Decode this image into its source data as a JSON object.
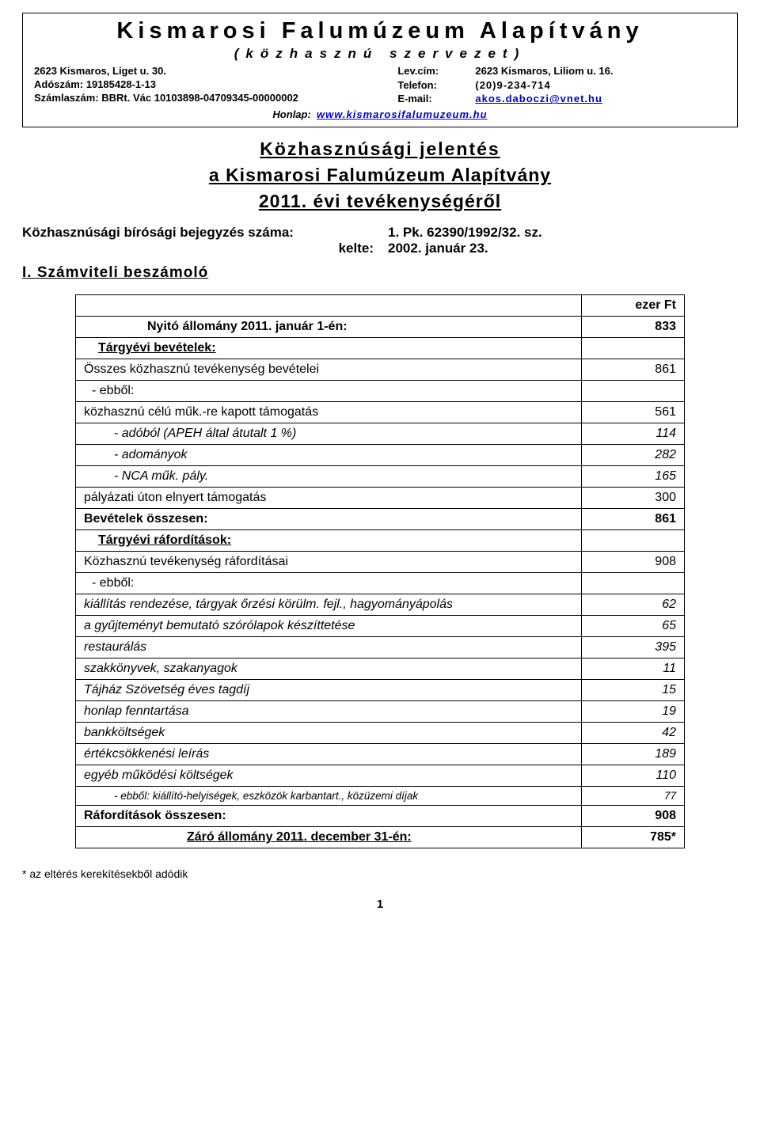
{
  "letterhead": {
    "title": "Kismarosi Falumúzeum Alapítvány",
    "subtitle": "(közhasznú szervezet)",
    "left": {
      "addr": "2623 Kismaros, Liget u. 30.",
      "tax": "Adószám: 19185428-1-13",
      "acct": "Számlaszám: BBRt. Vác 10103898-04709345-00000002"
    },
    "right": {
      "lev_label": "Lev.cím:",
      "lev": "2623 Kismaros, Liliom u. 16.",
      "tel_label": "Telefon:",
      "tel": "(20)9-234-714",
      "email_label": "E-mail:",
      "email": "akos.daboczi@vnet.hu"
    },
    "honlap_label": "Honlap:",
    "honlap": "www.kismarosifalumuzeum.hu"
  },
  "title": {
    "l1": "Közhasznúsági jelentés",
    "l2": "a Kismarosi Falumúzeum Alapítvány",
    "l3": "2011. évi tevékenységéről"
  },
  "reg": {
    "row1_label": "Közhasznúsági bírósági bejegyzés száma:",
    "row1_val": "1. Pk. 62390/1992/32. sz.",
    "row2_label": "kelte:",
    "row2_val": "2002. január 23."
  },
  "section1": "I.  Számviteli beszámoló",
  "table": {
    "unit": "ezer Ft",
    "rows": [
      {
        "label": "Nyitó állomány 2011. január 1-én:",
        "value": "833",
        "bold": true,
        "style": "center1"
      },
      {
        "label": "Tárgyévi bevételek:",
        "value": "",
        "bold": true,
        "style": "indent1"
      },
      {
        "label": "Összes közhasznú tevékenység bevételei",
        "value": "861",
        "style": "plain"
      },
      {
        "label": "- ebből:",
        "value": "",
        "style": "indent05"
      },
      {
        "label": "közhasznú célú műk.-re kapott támogatás",
        "value": "561",
        "style": "plain"
      },
      {
        "label": "- adóból (APEH által átutalt 1 %)",
        "value": "114",
        "ital": true,
        "style": "indent2"
      },
      {
        "label": "- adományok",
        "value": "282",
        "ital": true,
        "style": "indent2"
      },
      {
        "label": "- NCA műk. pály.",
        "value": "165",
        "ital": true,
        "style": "indent2"
      },
      {
        "label": "pályázati úton elnyert támogatás",
        "value": "300",
        "style": "plain"
      },
      {
        "label": "Bevételek összesen:",
        "value": "861",
        "bold": true,
        "style": "plain"
      },
      {
        "label": "Tárgyévi ráfordítások:",
        "value": "",
        "bold": true,
        "style": "indent1"
      },
      {
        "label": "Közhasznú tevékenység ráfordításai",
        "value": "908",
        "style": "plain"
      },
      {
        "label": "- ebből:",
        "value": "",
        "style": "indent05"
      },
      {
        "label": "kiállítás rendezése, tárgyak őrzési körülm. fejl., hagyományápolás",
        "value": "62",
        "ital": true,
        "style": "plain"
      },
      {
        "label": "a gyűjteményt bemutató szórólapok készíttetése",
        "value": "65",
        "ital": true,
        "style": "plain"
      },
      {
        "label": "restaurálás",
        "value": "395",
        "ital": true,
        "style": "plain"
      },
      {
        "label": "szakkönyvek, szakanyagok",
        "value": "11",
        "ital": true,
        "style": "plain"
      },
      {
        "label": "Tájház Szövetség éves tagdíj",
        "value": "15",
        "ital": true,
        "style": "plain"
      },
      {
        "label": "honlap fenntartása",
        "value": "19",
        "ital": true,
        "style": "plain"
      },
      {
        "label": "bankköltségek",
        "value": "42",
        "ital": true,
        "style": "plain"
      },
      {
        "label": "értékcsökkenési leírás",
        "value": "189",
        "ital": true,
        "style": "plain"
      },
      {
        "label": "egyéb működési költségek",
        "value": "110",
        "ital": true,
        "style": "plain"
      },
      {
        "label": "- ebből: kiállító-helyiségek, eszközök karbantart., közüzemi díjak",
        "value": "77",
        "ital": true,
        "style": "small-indent2"
      },
      {
        "label": "Ráfordítások összesen:",
        "value": "908",
        "bold": true,
        "style": "plain"
      },
      {
        "label": "Záró állomány 2011. december 31-én:",
        "value": "785*",
        "bold": true,
        "style": "center2"
      }
    ]
  },
  "footnote": "* az eltérés kerekítésekből adódik",
  "pagenum": "1",
  "colors": {
    "text": "#000000",
    "link": "#0000cc",
    "border": "#000000",
    "background": "#ffffff"
  }
}
